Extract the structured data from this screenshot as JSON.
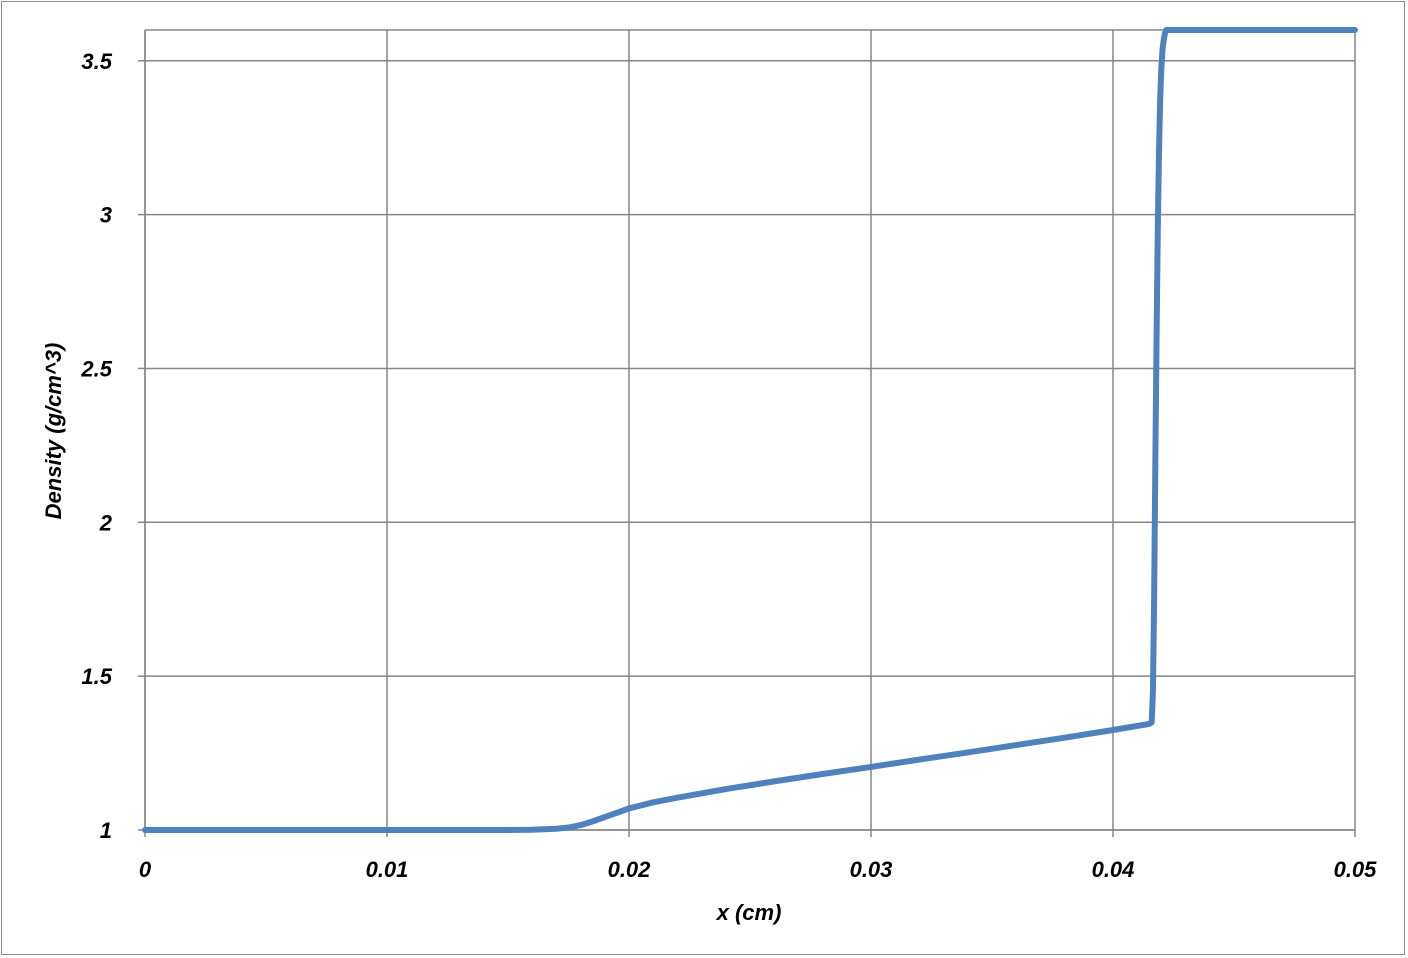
{
  "chart_data": {
    "type": "line",
    "title": "",
    "xlabel": "x (cm)",
    "ylabel": "Density (g/cm^3)",
    "xlim": [
      0,
      0.05
    ],
    "ylim": [
      1,
      3.6
    ],
    "x_ticks": [
      0,
      0.01,
      0.02,
      0.03,
      0.04,
      0.05
    ],
    "x_tick_labels": [
      "0",
      "0.01",
      "0.02",
      "0.03",
      "0.04",
      "0.05"
    ],
    "y_ticks": [
      1,
      1.5,
      2,
      2.5,
      3,
      3.5
    ],
    "y_tick_labels": [
      "1",
      "1.5",
      "2",
      "2.5",
      "3",
      "3.5"
    ],
    "grid": true,
    "legend": "none",
    "series": [
      {
        "color": "#4f81bd",
        "x": [
          0,
          0.005,
          0.01,
          0.015,
          0.016,
          0.017,
          0.0175,
          0.018,
          0.0185,
          0.019,
          0.0195,
          0.02,
          0.021,
          0.022,
          0.024,
          0.026,
          0.028,
          0.03,
          0.032,
          0.034,
          0.036,
          0.038,
          0.04,
          0.0413,
          0.0415,
          0.0416,
          0.04165,
          0.0417,
          0.04175,
          0.0418,
          0.04185,
          0.0419,
          0.04195,
          0.042,
          0.04205,
          0.0421,
          0.04215,
          0.0422,
          0.0423,
          0.0425,
          0.045,
          0.05
        ],
        "y": [
          1.0,
          1.0,
          1.0,
          1.0,
          1.001,
          1.004,
          1.008,
          1.016,
          1.028,
          1.042,
          1.056,
          1.07,
          1.09,
          1.105,
          1.133,
          1.158,
          1.182,
          1.205,
          1.229,
          1.252,
          1.276,
          1.3,
          1.325,
          1.342,
          1.345,
          1.35,
          1.45,
          1.75,
          2.2,
          2.6,
          2.95,
          3.2,
          3.38,
          3.48,
          3.54,
          3.57,
          3.59,
          3.6,
          3.6,
          3.6,
          3.6,
          3.6
        ]
      }
    ]
  }
}
